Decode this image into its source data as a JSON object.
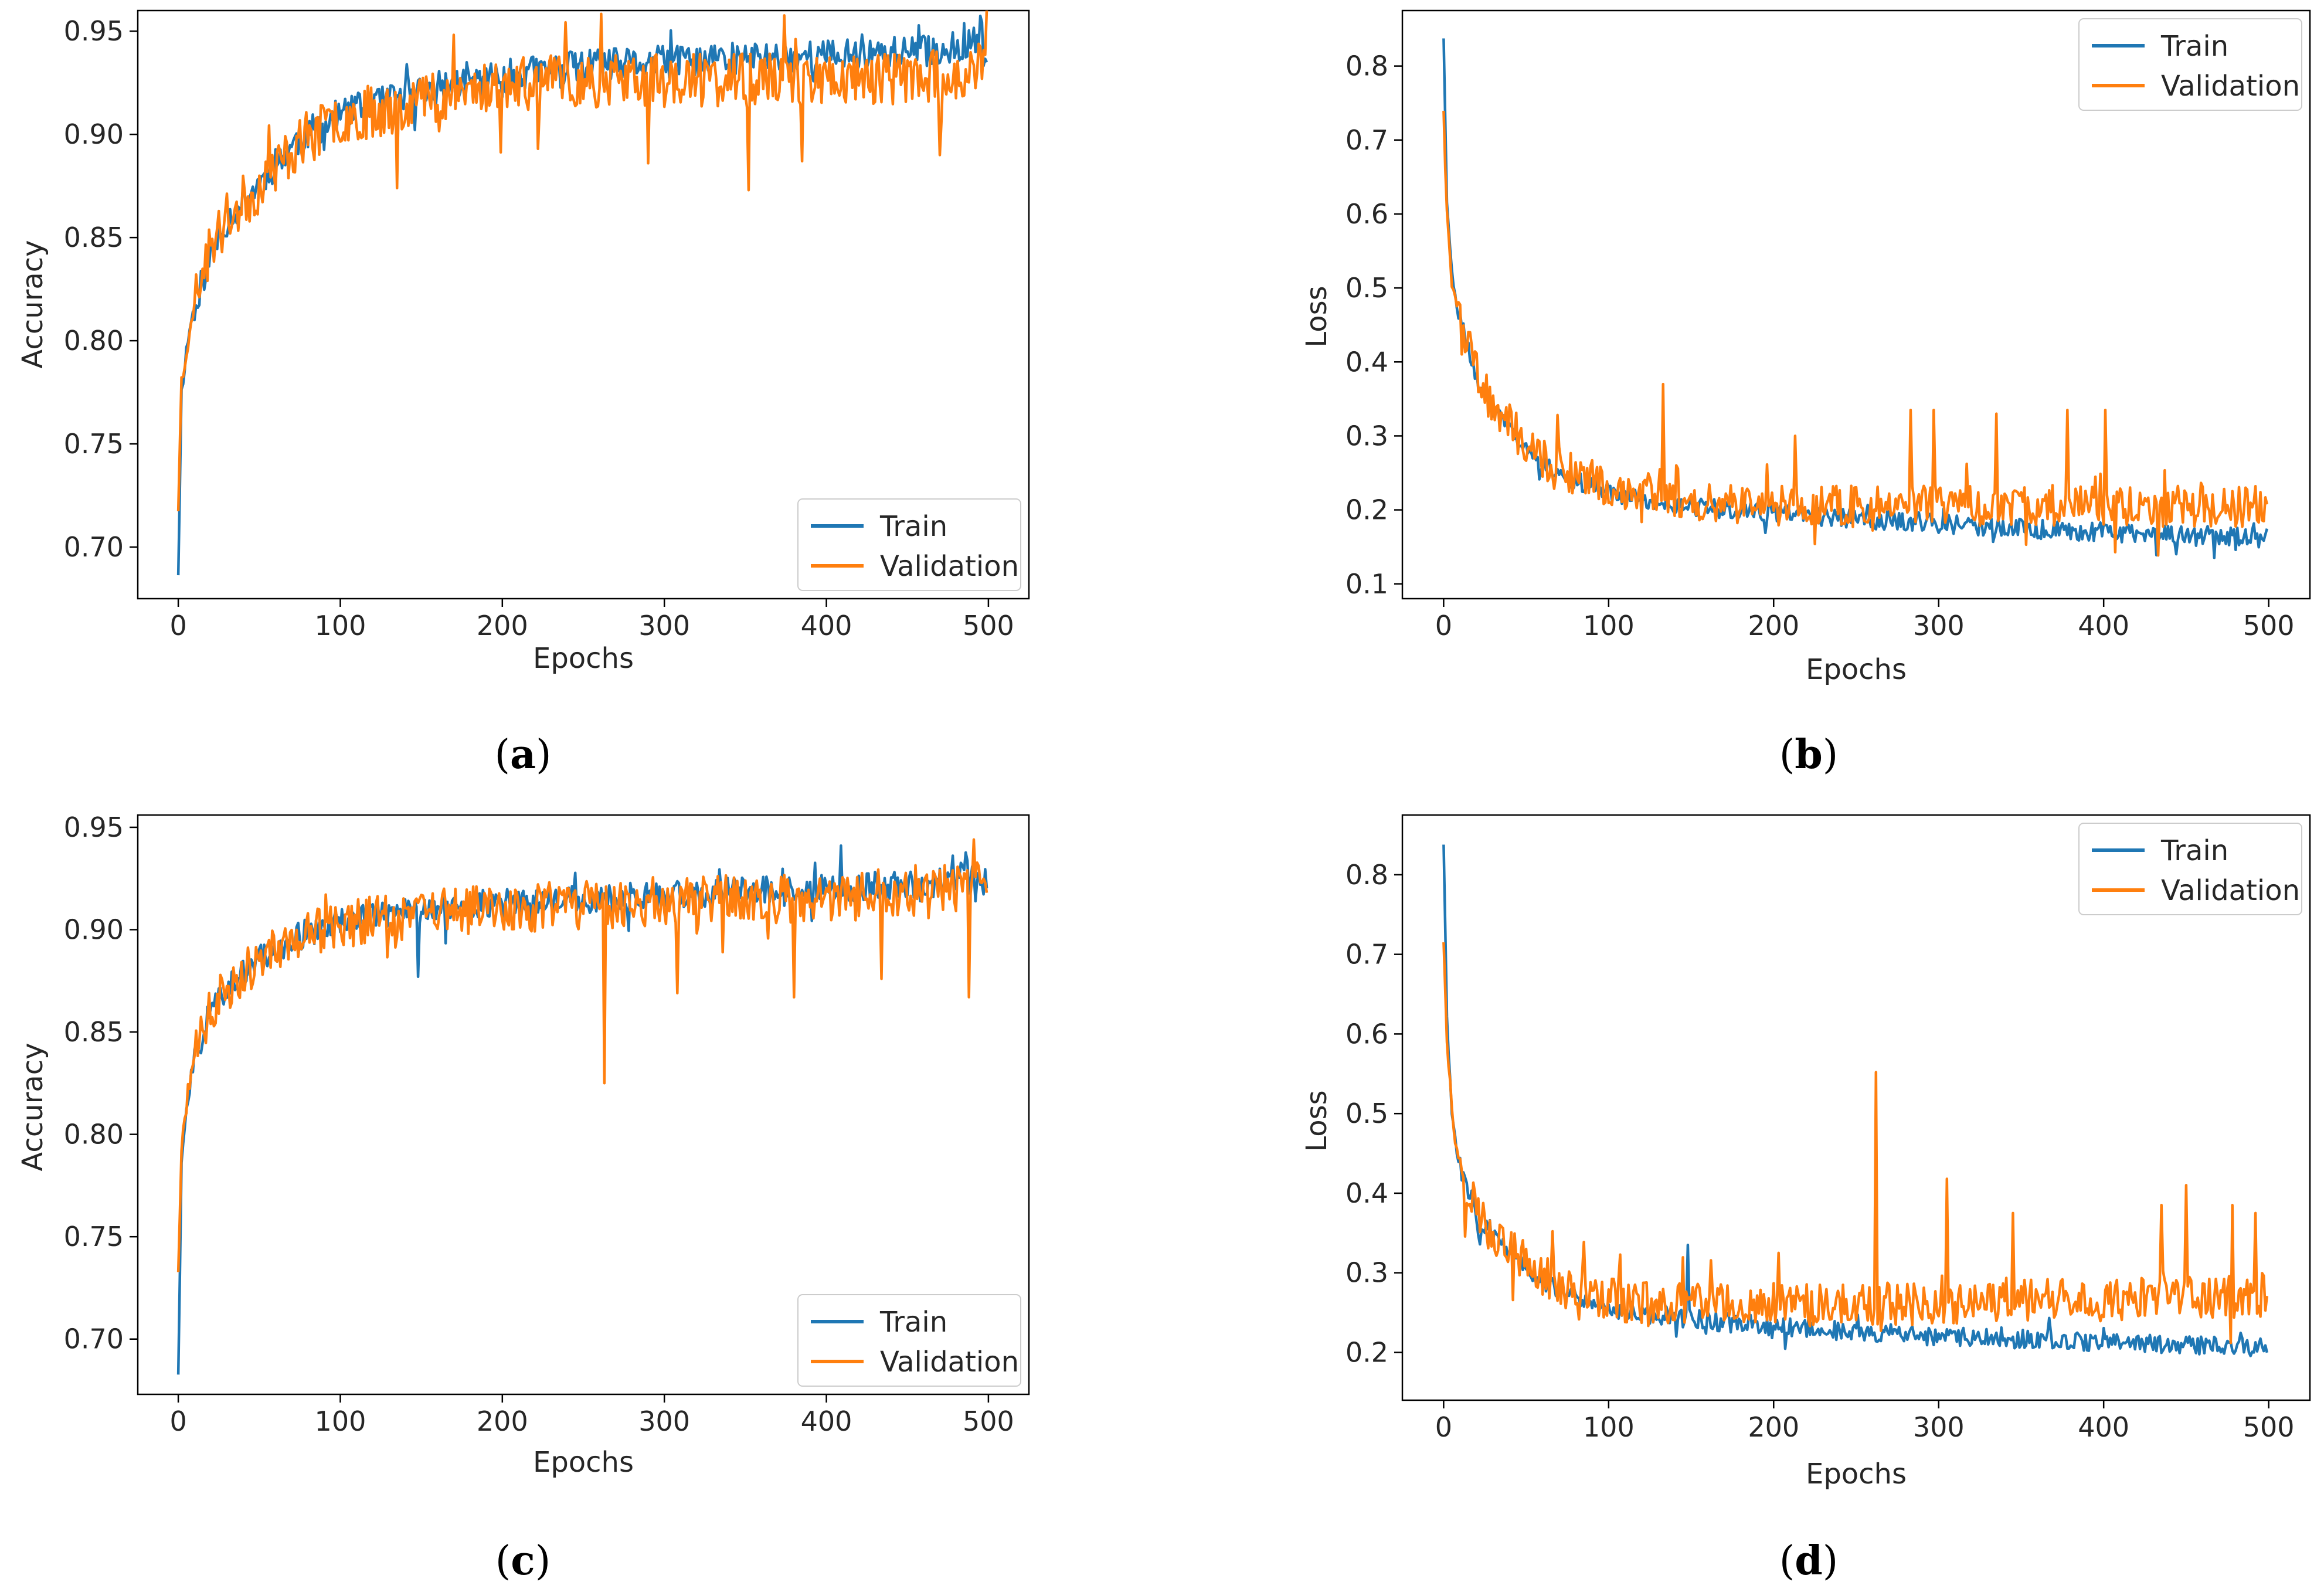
{
  "colors": {
    "train": "#1f77b4",
    "validation": "#ff7f0e",
    "axis": "#000000",
    "text": "#262626",
    "legend_border": "#cccccc"
  },
  "chart_data": [
    {
      "type": "line",
      "panel": "a",
      "caption_open": "(",
      "caption_letter": "a",
      "caption_close": ")",
      "xlabel": "Epochs",
      "ylabel": "Accuracy",
      "xlim": [
        -25,
        525
      ],
      "ylim": [
        0.675,
        0.96
      ],
      "xticks": [
        0,
        100,
        200,
        300,
        400,
        500
      ],
      "xtick_labels": [
        "0",
        "100",
        "200",
        "300",
        "400",
        "500"
      ],
      "yticks": [
        0.7,
        0.75,
        0.8,
        0.85,
        0.9,
        0.95
      ],
      "ytick_labels": [
        "0.70",
        "0.75",
        "0.80",
        "0.85",
        "0.90",
        "0.95"
      ],
      "legend": {
        "position": "lower-right",
        "entries": [
          "Train",
          "Validation"
        ]
      },
      "series": [
        {
          "name": "Train",
          "color": "train",
          "x": [
            0,
            2,
            5,
            8,
            12,
            20,
            30,
            40,
            50,
            60,
            75,
            90,
            100,
            125,
            150,
            175,
            200,
            225,
            250,
            275,
            300,
            325,
            350,
            375,
            400,
            425,
            450,
            475,
            490,
            495,
            499
          ],
          "y": [
            0.688,
            0.775,
            0.795,
            0.81,
            0.822,
            0.842,
            0.858,
            0.868,
            0.876,
            0.886,
            0.898,
            0.905,
            0.91,
            0.915,
            0.921,
            0.925,
            0.928,
            0.931,
            0.933,
            0.934,
            0.935,
            0.936,
            0.937,
            0.938,
            0.938,
            0.939,
            0.94,
            0.941,
            0.945,
            0.95,
            0.938
          ],
          "noise": 0.008,
          "seed": 11
        },
        {
          "name": "Validation",
          "color": "validation",
          "x": [
            0,
            2,
            5,
            8,
            12,
            20,
            30,
            40,
            50,
            60,
            75,
            90,
            100,
            125,
            150,
            175,
            200,
            225,
            250,
            275,
            300,
            325,
            350,
            375,
            400,
            425,
            450,
            475,
            490,
            499
          ],
          "y": [
            0.72,
            0.78,
            0.795,
            0.812,
            0.825,
            0.845,
            0.858,
            0.867,
            0.874,
            0.884,
            0.896,
            0.903,
            0.908,
            0.912,
            0.918,
            0.921,
            0.924,
            0.925,
            0.926,
            0.926,
            0.926,
            0.926,
            0.926,
            0.927,
            0.927,
            0.927,
            0.928,
            0.928,
            0.93,
            0.935
          ],
          "noise": 0.013,
          "seed": 23,
          "spikes": [
            [
              135,
              0.874
            ],
            [
              222,
              0.893
            ],
            [
              290,
              0.886
            ],
            [
              352,
              0.873
            ],
            [
              385,
              0.887
            ],
            [
              470,
              0.89
            ]
          ]
        }
      ]
    },
    {
      "type": "line",
      "panel": "b",
      "caption_open": "(",
      "caption_letter": "b",
      "caption_close": ")",
      "xlabel": "Epochs",
      "ylabel": "Loss",
      "xlim": [
        -25,
        525
      ],
      "ylim": [
        0.08,
        0.875
      ],
      "xticks": [
        0,
        100,
        200,
        300,
        400,
        500
      ],
      "xtick_labels": [
        "0",
        "100",
        "200",
        "300",
        "400",
        "500"
      ],
      "yticks": [
        0.1,
        0.2,
        0.3,
        0.4,
        0.5,
        0.6,
        0.7,
        0.8
      ],
      "ytick_labels": [
        "0.1",
        "0.2",
        "0.3",
        "0.4",
        "0.5",
        "0.6",
        "0.7",
        "0.8"
      ],
      "legend": {
        "position": "upper-right",
        "entries": [
          "Train",
          "Validation"
        ]
      },
      "series": [
        {
          "name": "Train",
          "color": "train",
          "x": [
            0,
            2,
            5,
            8,
            12,
            20,
            30,
            40,
            50,
            60,
            75,
            90,
            100,
            125,
            150,
            175,
            200,
            225,
            250,
            275,
            300,
            325,
            350,
            375,
            400,
            425,
            450,
            475,
            499
          ],
          "y": [
            0.84,
            0.62,
            0.52,
            0.47,
            0.44,
            0.38,
            0.335,
            0.305,
            0.282,
            0.265,
            0.245,
            0.232,
            0.225,
            0.212,
            0.205,
            0.2,
            0.196,
            0.192,
            0.188,
            0.185,
            0.182,
            0.178,
            0.175,
            0.172,
            0.17,
            0.168,
            0.166,
            0.165,
            0.165
          ],
          "noise": 0.013,
          "seed": 31
        },
        {
          "name": "Validation",
          "color": "validation",
          "x": [
            0,
            2,
            5,
            8,
            12,
            20,
            30,
            40,
            50,
            60,
            75,
            90,
            100,
            125,
            150,
            175,
            200,
            225,
            250,
            275,
            300,
            325,
            350,
            375,
            400,
            425,
            450,
            475,
            499
          ],
          "y": [
            0.745,
            0.6,
            0.51,
            0.47,
            0.44,
            0.385,
            0.34,
            0.315,
            0.29,
            0.27,
            0.252,
            0.24,
            0.232,
            0.222,
            0.215,
            0.21,
            0.207,
            0.205,
            0.205,
            0.206,
            0.207,
            0.206,
            0.206,
            0.206,
            0.206,
            0.205,
            0.205,
            0.205,
            0.205
          ],
          "noise": 0.028,
          "seed": 47,
          "spikes": [
            [
              133,
              0.37
            ],
            [
              213,
              0.3
            ],
            [
              283,
              0.335
            ],
            [
              297,
              0.335
            ],
            [
              335,
              0.33
            ],
            [
              378,
              0.335
            ],
            [
              401,
              0.335
            ]
          ]
        }
      ]
    },
    {
      "type": "line",
      "panel": "c",
      "caption_open": "(",
      "caption_letter": "c",
      "caption_close": ")",
      "xlabel": "Epochs",
      "ylabel": "Accuracy",
      "xlim": [
        -25,
        525
      ],
      "ylim": [
        0.673,
        0.956
      ],
      "xticks": [
        0,
        100,
        200,
        300,
        400,
        500
      ],
      "xtick_labels": [
        "0",
        "100",
        "200",
        "300",
        "400",
        "500"
      ],
      "yticks": [
        0.7,
        0.75,
        0.8,
        0.85,
        0.9,
        0.95
      ],
      "ytick_labels": [
        "0.70",
        "0.75",
        "0.80",
        "0.85",
        "0.90",
        "0.95"
      ],
      "legend": {
        "position": "lower-right",
        "entries": [
          "Train",
          "Validation"
        ]
      },
      "series": [
        {
          "name": "Train",
          "color": "train",
          "x": [
            0,
            2,
            5,
            8,
            12,
            20,
            30,
            40,
            50,
            60,
            75,
            90,
            100,
            125,
            150,
            175,
            200,
            225,
            250,
            275,
            300,
            325,
            350,
            375,
            400,
            425,
            450,
            475,
            490,
            499
          ],
          "y": [
            0.684,
            0.785,
            0.812,
            0.828,
            0.842,
            0.86,
            0.872,
            0.88,
            0.886,
            0.891,
            0.897,
            0.902,
            0.905,
            0.908,
            0.91,
            0.912,
            0.913,
            0.914,
            0.915,
            0.916,
            0.917,
            0.918,
            0.919,
            0.92,
            0.92,
            0.921,
            0.922,
            0.923,
            0.93,
            0.922
          ],
          "noise": 0.007,
          "seed": 59,
          "spikes": [
            [
              148,
              0.877
            ]
          ]
        },
        {
          "name": "Validation",
          "color": "validation",
          "x": [
            0,
            2,
            5,
            8,
            12,
            20,
            30,
            40,
            50,
            60,
            75,
            90,
            100,
            125,
            150,
            175,
            200,
            225,
            250,
            275,
            300,
            325,
            350,
            375,
            400,
            425,
            450,
            475,
            490,
            499
          ],
          "y": [
            0.735,
            0.79,
            0.815,
            0.83,
            0.842,
            0.86,
            0.872,
            0.88,
            0.885,
            0.89,
            0.896,
            0.9,
            0.903,
            0.906,
            0.908,
            0.909,
            0.91,
            0.911,
            0.912,
            0.913,
            0.914,
            0.914,
            0.915,
            0.915,
            0.916,
            0.916,
            0.917,
            0.918,
            0.925,
            0.915
          ],
          "noise": 0.012,
          "seed": 71,
          "spikes": [
            [
              263,
              0.825
            ],
            [
              308,
              0.869
            ],
            [
              380,
              0.867
            ],
            [
              434,
              0.876
            ],
            [
              488,
              0.867
            ],
            [
              491,
              0.944
            ]
          ]
        }
      ]
    },
    {
      "type": "line",
      "panel": "d",
      "caption_open": "(",
      "caption_letter": "d",
      "caption_close": ")",
      "xlabel": "Epochs",
      "ylabel": "Loss",
      "xlim": [
        -25,
        525
      ],
      "ylim": [
        0.14,
        0.875
      ],
      "xticks": [
        0,
        100,
        200,
        300,
        400,
        500
      ],
      "xtick_labels": [
        "0",
        "100",
        "200",
        "300",
        "400",
        "500"
      ],
      "yticks": [
        0.2,
        0.3,
        0.4,
        0.5,
        0.6,
        0.7,
        0.8
      ],
      "ytick_labels": [
        "0.2",
        "0.3",
        "0.4",
        "0.5",
        "0.6",
        "0.7",
        "0.8"
      ],
      "legend": {
        "position": "upper-right",
        "entries": [
          "Train",
          "Validation"
        ]
      },
      "series": [
        {
          "name": "Train",
          "color": "train",
          "x": [
            0,
            2,
            5,
            8,
            12,
            20,
            30,
            40,
            50,
            60,
            75,
            90,
            100,
            125,
            150,
            175,
            200,
            225,
            250,
            275,
            300,
            325,
            350,
            375,
            400,
            425,
            450,
            475,
            499
          ],
          "y": [
            0.84,
            0.62,
            0.5,
            0.45,
            0.42,
            0.375,
            0.345,
            0.325,
            0.305,
            0.29,
            0.275,
            0.262,
            0.256,
            0.248,
            0.242,
            0.237,
            0.233,
            0.229,
            0.226,
            0.223,
            0.22,
            0.218,
            0.216,
            0.214,
            0.212,
            0.211,
            0.21,
            0.208,
            0.205
          ],
          "noise": 0.012,
          "seed": 83,
          "spikes": [
            [
              148,
              0.335
            ]
          ]
        },
        {
          "name": "Validation",
          "color": "validation",
          "x": [
            0,
            2,
            5,
            8,
            12,
            20,
            30,
            40,
            50,
            60,
            75,
            90,
            100,
            125,
            150,
            175,
            200,
            225,
            250,
            275,
            300,
            325,
            350,
            375,
            400,
            425,
            450,
            475,
            499
          ],
          "y": [
            0.72,
            0.6,
            0.5,
            0.455,
            0.425,
            0.38,
            0.35,
            0.33,
            0.31,
            0.295,
            0.28,
            0.27,
            0.266,
            0.262,
            0.26,
            0.26,
            0.26,
            0.26,
            0.26,
            0.261,
            0.262,
            0.263,
            0.264,
            0.265,
            0.266,
            0.267,
            0.268,
            0.269,
            0.27
          ],
          "noise": 0.027,
          "seed": 97,
          "spikes": [
            [
              262,
              0.552
            ],
            [
              305,
              0.418
            ],
            [
              345,
              0.375
            ],
            [
              435,
              0.385
            ],
            [
              450,
              0.41
            ],
            [
              478,
              0.385
            ],
            [
              492,
              0.375
            ]
          ]
        }
      ]
    }
  ]
}
